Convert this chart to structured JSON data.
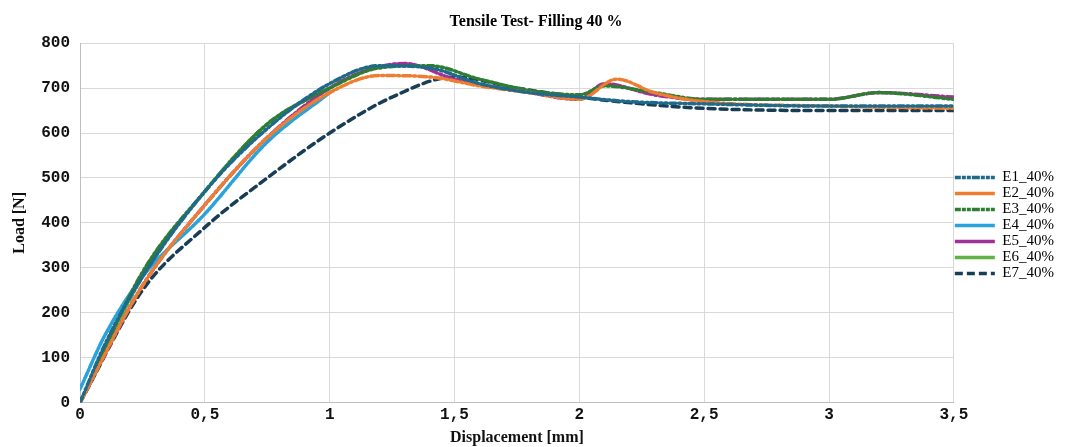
{
  "chart_data": {
    "type": "line",
    "title": "Tensile Test- Filling 40 %",
    "xlabel": "Displacement [mm]",
    "ylabel": "Load [N]",
    "xlim": [
      0,
      3.5
    ],
    "xticks": [
      0,
      {
        "value": 0.5,
        "label": "0,5"
      },
      1,
      {
        "value": 1.5,
        "label": "1,5"
      },
      2,
      {
        "value": 2.5,
        "label": "2,5"
      },
      3,
      {
        "value": 3.5,
        "label": "3,5"
      }
    ],
    "ylim": [
      0,
      800
    ],
    "yticks": [
      0,
      100,
      200,
      300,
      400,
      500,
      600,
      700,
      800
    ],
    "grid": true,
    "legend": "right",
    "marker": "none",
    "line_style": "dashed",
    "series": [
      {
        "name": "E1_40%",
        "color": "#1f6a8a",
        "x": [
          0,
          0.1,
          0.25,
          0.5,
          0.75,
          1.0,
          1.2,
          1.4,
          1.6,
          1.8,
          2.0,
          2.2,
          2.5,
          3.0,
          3.5
        ],
        "values": [
          0,
          130,
          280,
          470,
          610,
          710,
          750,
          745,
          710,
          690,
          680,
          670,
          665,
          660,
          660
        ]
      },
      {
        "name": "E2_40%",
        "color": "#ed7d31",
        "x": [
          0,
          0.25,
          0.5,
          0.75,
          1.0,
          1.2,
          1.4,
          1.6,
          1.8,
          2.0,
          2.15,
          2.3,
          2.5,
          3.0,
          3.5
        ],
        "values": [
          0,
          260,
          440,
          590,
          690,
          728,
          725,
          705,
          690,
          675,
          720,
          690,
          670,
          660,
          655
        ]
      },
      {
        "name": "E3_40%",
        "color": "#2e7d32",
        "x": [
          0,
          0.25,
          0.5,
          0.75,
          1.0,
          1.2,
          1.4,
          1.6,
          1.8,
          2.0,
          2.1,
          2.3,
          2.5,
          3.0,
          3.2,
          3.5
        ],
        "values": [
          0,
          290,
          470,
          620,
          700,
          745,
          750,
          720,
          695,
          685,
          705,
          690,
          675,
          675,
          690,
          675
        ]
      },
      {
        "name": "E4_40%",
        "color": "#29a3d9",
        "x": [
          0,
          0.1,
          0.25,
          0.5,
          0.75,
          1.0
        ],
        "values": [
          30,
          150,
          280,
          420,
          580,
          690
        ]
      },
      {
        "name": "E5_40%",
        "color": "#a0309a",
        "x": [
          0,
          0.25,
          0.5,
          0.75,
          1.0,
          1.15,
          1.3,
          1.5,
          1.8,
          2.0,
          2.1,
          2.3,
          2.5,
          3.0,
          3.2,
          3.5
        ],
        "values": [
          0,
          260,
          440,
          590,
          700,
          740,
          755,
          720,
          690,
          675,
          710,
          685,
          675,
          675,
          690,
          680
        ]
      },
      {
        "name": "E6_40%",
        "color": "#5fb346",
        "x": [
          0,
          0.25,
          0.5,
          0.75,
          1.0
        ],
        "values": [
          0,
          280,
          470,
          620,
          700
        ]
      },
      {
        "name": "E7_40%",
        "color": "#173e55",
        "x": [
          0,
          0.25,
          0.5,
          0.75,
          1.0,
          1.25,
          1.5,
          1.75,
          2.0,
          2.25,
          2.5,
          3.0,
          3.5
        ],
        "values": [
          0,
          250,
          390,
          500,
          600,
          680,
          725,
          700,
          680,
          665,
          655,
          650,
          650
        ]
      }
    ]
  }
}
